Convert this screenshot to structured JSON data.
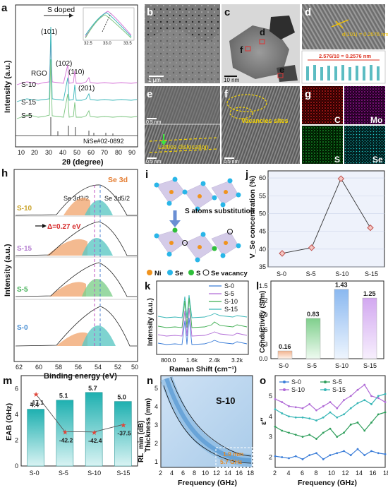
{
  "panel_letters": [
    "a",
    "b",
    "c",
    "d",
    "e",
    "f",
    "g",
    "h",
    "i",
    "j",
    "k",
    "l",
    "m",
    "n",
    "o"
  ],
  "panel_a": {
    "annotation": "S doped",
    "rgo": "RGO",
    "peaks": [
      "(101)",
      "(102)",
      "(110)",
      "(201)"
    ],
    "series": [
      "S-10",
      "S-15",
      "S-5"
    ],
    "reference": "NiSe#02-0892",
    "inset_ticks": [
      "32.5",
      "33.0",
      "33.5"
    ],
    "xlabel": "2θ (degree)",
    "ylabel": "Intensity (a.u.)",
    "xticks": [
      "10",
      "20",
      "30",
      "40",
      "50",
      "60",
      "70",
      "80",
      "90"
    ],
    "colors": {
      "S-10": "#d46fd6",
      "S-15": "#37b5b8",
      "S-5": "#79c47d",
      "ref": "#333333"
    }
  },
  "panel_b": {
    "scale": "1 μm"
  },
  "panel_c": {
    "scale": "10 nm",
    "labels": [
      "d",
      "f",
      "e"
    ]
  },
  "panel_d": {
    "fringe": "d(101) = 0.2576 nm",
    "measure": "2.576/10 = 0.2576 nm"
  },
  "panel_e": {
    "scale_top": "0.5 nm",
    "scale_bottom": "0.5 nm",
    "label": "Lattice dislocation"
  },
  "panel_f": {
    "label": "Vacancies sites",
    "scale": "0.5 nm"
  },
  "panel_g": {
    "maps": [
      "C",
      "Mo",
      "S",
      "Se"
    ]
  },
  "panel_h": {
    "corner": "Se 3d",
    "d32": "Se 3d3/2",
    "d52": "Se 3d5/2",
    "shift": "Δ=0.27 eV",
    "samples": [
      "S-10",
      "S-15",
      "S-5",
      "S-0"
    ],
    "xlabel": "Binding energy (eV)",
    "ylabel": "Intensity (a.u.)",
    "xticks": [
      "62",
      "60",
      "58",
      "56",
      "54",
      "52",
      "50"
    ],
    "colors": {
      "S-10": "#c9a227",
      "S-15": "#b57fd1",
      "S-5": "#3fae52",
      "S-0": "#4a8fd3"
    }
  },
  "panel_i": {
    "arrow_label": "S atoms substitution",
    "legend": [
      "Ni",
      "Se",
      "S",
      "Se vacancy"
    ]
  },
  "panel_j": {
    "ylabel": "V_Se concentration (%)",
    "yticks": [
      "35",
      "40",
      "45",
      "50",
      "55",
      "60"
    ]
  },
  "panel_k": {
    "legend": [
      "S-0",
      "S-5",
      "S-10",
      "S-15"
    ],
    "xlabel": "Raman Shift (cm⁻¹)",
    "ylabel": "Intensity (a.u.)",
    "xticks": [
      "800.0",
      "1.6k",
      "2.4k",
      "3.2k"
    ]
  },
  "panel_l": {
    "ylabel": "Conductivity (S/m)",
    "yticks": [
      "0.0",
      "0.3",
      "0.6",
      "0.9",
      "1.2",
      "1.5"
    ]
  },
  "panel_m": {
    "ylabel": "EAB (GHz)",
    "yticks": [
      "0",
      "2",
      "4",
      "6"
    ]
  },
  "panel_n": {
    "label": "S-10",
    "annot_1": "1.9 mm",
    "annot_2": "5.7 GHz",
    "ylabel": "Thickness (mm)",
    "ylabel2": "RL_min (dB)",
    "xlabel": "Frequency (GHz)",
    "xticks": [
      "2",
      "4",
      "6",
      "8",
      "10",
      "12",
      "14",
      "16",
      "18"
    ],
    "yticks": [
      "1",
      "2",
      "3",
      "4",
      "5"
    ]
  },
  "panel_o": {
    "ylabel": "ε″",
    "xlabel": "Frequency (GHz)",
    "xticks": [
      "2",
      "4",
      "6",
      "8",
      "10",
      "12",
      "14",
      "16",
      "18"
    ],
    "yticks": [
      "2",
      "3",
      "4",
      "5"
    ]
  },
  "chart_data": [
    {
      "id": "j",
      "type": "line",
      "categories": [
        "S-0",
        "S-5",
        "S-10",
        "S-15"
      ],
      "values": [
        38.8,
        40.4,
        59.8,
        46.0
      ],
      "ylabel": "V_Se concentration (%)",
      "ylim": [
        35,
        62
      ],
      "color": "#c0504d"
    },
    {
      "id": "l",
      "type": "bar",
      "categories": [
        "S-0",
        "S-5",
        "S-10",
        "S-15"
      ],
      "values": [
        0.16,
        0.83,
        1.43,
        1.25
      ],
      "labels": [
        "0.16",
        "0.83",
        "1.43",
        "1.25"
      ],
      "ylabel": "Conductivity (S/m)",
      "ylim": [
        0,
        1.6
      ],
      "colors": [
        "#f2b38e",
        "#8fd19a",
        "#9fc3f0",
        "#d7b6f0"
      ]
    },
    {
      "id": "m",
      "type": "bar",
      "categories": [
        "S-0",
        "S-5",
        "S-10",
        "S-15"
      ],
      "values": [
        4.4,
        5.1,
        5.7,
        5.0
      ],
      "labels": [
        "4.4",
        "5.1",
        "5.7",
        "5.0"
      ],
      "line_values": [
        -17.1,
        -42.2,
        -42.4,
        -37.5
      ],
      "line_labels": [
        "-17.1",
        "-42.2",
        "-42.4",
        "-37.5"
      ],
      "ylabel": "EAB (GHz)",
      "ylim": [
        0,
        7
      ],
      "line_ylim": [
        -5,
        -65
      ],
      "color": "#2ab3b3"
    },
    {
      "id": "o",
      "type": "line",
      "xlabel": "Frequency (GHz)",
      "ylabel": "ε″",
      "xlim": [
        2,
        18
      ],
      "ylim": [
        1.5,
        6
      ],
      "x": [
        2,
        3,
        4,
        5,
        6,
        7,
        8,
        9,
        10,
        11,
        12,
        13,
        14,
        15,
        16,
        17,
        18
      ],
      "series": [
        {
          "name": "S-0",
          "color": "#3b7dd8",
          "values": [
            2.05,
            2.0,
            1.95,
            2.05,
            1.9,
            2.1,
            2.2,
            1.9,
            2.1,
            2.2,
            2.3,
            2.1,
            2.4,
            2.1,
            2.3,
            2.2,
            2.15
          ]
        },
        {
          "name": "S-5",
          "color": "#2e9e5b",
          "values": [
            3.5,
            3.3,
            3.2,
            3.1,
            3.0,
            3.1,
            2.9,
            3.2,
            3.4,
            3.0,
            3.2,
            3.6,
            3.7,
            3.3,
            3.7,
            4.1,
            4.2
          ]
        },
        {
          "name": "S-10",
          "color": "#b06ad6",
          "values": [
            4.85,
            4.7,
            4.5,
            4.45,
            4.4,
            4.6,
            4.3,
            4.5,
            4.7,
            4.4,
            4.8,
            5.0,
            5.3,
            5.55,
            5.0,
            4.9,
            4.7
          ]
        },
        {
          "name": "S-15",
          "color": "#37b6b6",
          "values": [
            4.35,
            4.15,
            4.0,
            3.95,
            3.95,
            3.9,
            3.8,
            3.95,
            4.2,
            3.95,
            4.1,
            4.4,
            4.65,
            4.8,
            4.6,
            5.0,
            5.1
          ]
        }
      ]
    }
  ]
}
